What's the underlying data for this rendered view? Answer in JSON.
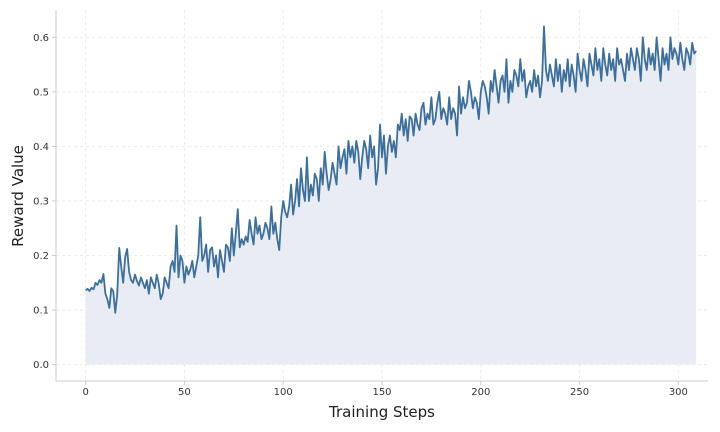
{
  "chart_data": {
    "type": "area",
    "title": "",
    "xlabel": "Training Steps",
    "ylabel": "Reward Value",
    "xlim": [
      -15,
      315
    ],
    "ylim": [
      -0.03,
      0.65
    ],
    "xticks": [
      0,
      50,
      100,
      150,
      200,
      250,
      300
    ],
    "xtick_labels": [
      "0",
      "50",
      "100",
      "150",
      "200",
      "250",
      "300"
    ],
    "yticks": [
      0.0,
      0.1,
      0.2,
      0.3,
      0.4,
      0.5,
      0.6
    ],
    "ytick_labels": [
      "0.0",
      "0.1",
      "0.2",
      "0.3",
      "0.4",
      "0.5",
      "0.6"
    ],
    "grid": true,
    "colors": {
      "line": "#3d6f9a",
      "fill": "#e9edf3",
      "grid": "#e6e6e6",
      "axis": "#cccccc"
    },
    "series": [
      {
        "name": "Reward Value",
        "x_start": 0,
        "x_step": 1,
        "values": [
          0.136,
          0.139,
          0.135,
          0.141,
          0.138,
          0.15,
          0.146,
          0.155,
          0.15,
          0.166,
          0.13,
          0.12,
          0.104,
          0.14,
          0.134,
          0.095,
          0.13,
          0.214,
          0.18,
          0.15,
          0.197,
          0.212,
          0.17,
          0.155,
          0.15,
          0.165,
          0.153,
          0.145,
          0.16,
          0.15,
          0.14,
          0.155,
          0.13,
          0.16,
          0.15,
          0.14,
          0.165,
          0.148,
          0.12,
          0.13,
          0.16,
          0.15,
          0.14,
          0.18,
          0.19,
          0.17,
          0.255,
          0.16,
          0.2,
          0.19,
          0.15,
          0.18,
          0.165,
          0.175,
          0.19,
          0.16,
          0.18,
          0.2,
          0.27,
          0.19,
          0.2,
          0.22,
          0.17,
          0.21,
          0.215,
          0.18,
          0.2,
          0.16,
          0.21,
          0.19,
          0.17,
          0.22,
          0.215,
          0.19,
          0.25,
          0.2,
          0.24,
          0.285,
          0.215,
          0.23,
          0.22,
          0.235,
          0.225,
          0.265,
          0.24,
          0.22,
          0.27,
          0.24,
          0.255,
          0.23,
          0.24,
          0.26,
          0.25,
          0.23,
          0.29,
          0.24,
          0.26,
          0.23,
          0.21,
          0.27,
          0.3,
          0.28,
          0.27,
          0.29,
          0.33,
          0.275,
          0.3,
          0.34,
          0.29,
          0.36,
          0.32,
          0.3,
          0.38,
          0.3,
          0.33,
          0.31,
          0.35,
          0.34,
          0.3,
          0.36,
          0.33,
          0.39,
          0.35,
          0.32,
          0.34,
          0.37,
          0.35,
          0.33,
          0.4,
          0.36,
          0.38,
          0.395,
          0.35,
          0.41,
          0.38,
          0.4,
          0.37,
          0.41,
          0.39,
          0.34,
          0.38,
          0.41,
          0.395,
          0.36,
          0.42,
          0.38,
          0.4,
          0.33,
          0.36,
          0.44,
          0.38,
          0.42,
          0.35,
          0.4,
          0.42,
          0.39,
          0.41,
          0.38,
          0.44,
          0.43,
          0.46,
          0.42,
          0.45,
          0.41,
          0.455,
          0.45,
          0.42,
          0.46,
          0.44,
          0.43,
          0.47,
          0.48,
          0.44,
          0.46,
          0.45,
          0.49,
          0.44,
          0.45,
          0.48,
          0.5,
          0.45,
          0.47,
          0.46,
          0.44,
          0.49,
          0.45,
          0.47,
          0.46,
          0.42,
          0.51,
          0.46,
          0.49,
          0.47,
          0.48,
          0.52,
          0.5,
          0.47,
          0.49,
          0.48,
          0.45,
          0.5,
          0.52,
          0.51,
          0.49,
          0.46,
          0.52,
          0.5,
          0.54,
          0.51,
          0.48,
          0.52,
          0.53,
          0.5,
          0.56,
          0.48,
          0.52,
          0.5,
          0.54,
          0.53,
          0.51,
          0.56,
          0.52,
          0.54,
          0.49,
          0.51,
          0.52,
          0.5,
          0.54,
          0.51,
          0.53,
          0.49,
          0.52,
          0.62,
          0.54,
          0.52,
          0.55,
          0.53,
          0.51,
          0.56,
          0.52,
          0.55,
          0.5,
          0.54,
          0.52,
          0.56,
          0.51,
          0.55,
          0.53,
          0.5,
          0.57,
          0.54,
          0.52,
          0.56,
          0.54,
          0.51,
          0.57,
          0.55,
          0.53,
          0.58,
          0.54,
          0.56,
          0.52,
          0.58,
          0.55,
          0.53,
          0.57,
          0.54,
          0.56,
          0.52,
          0.58,
          0.55,
          0.56,
          0.54,
          0.52,
          0.57,
          0.54,
          0.58,
          0.56,
          0.54,
          0.58,
          0.56,
          0.52,
          0.6,
          0.56,
          0.54,
          0.58,
          0.55,
          0.57,
          0.54,
          0.6,
          0.56,
          0.52,
          0.58,
          0.55,
          0.57,
          0.54,
          0.6,
          0.56,
          0.58,
          0.57,
          0.55,
          0.59,
          0.56,
          0.54,
          0.58,
          0.57,
          0.55,
          0.59,
          0.57,
          0.575
        ]
      }
    ]
  }
}
